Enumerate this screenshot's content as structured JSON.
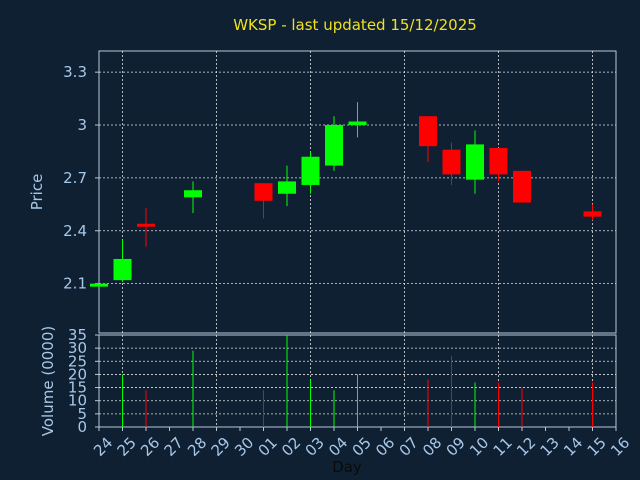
{
  "chart_data": [
    {
      "type": "candlestick",
      "title": "WKSP - last updated 15/12/2025",
      "ylabel": "Price",
      "ylim": [
        1.82,
        3.42
      ],
      "yticks": [
        2.1,
        2.4,
        2.7,
        3,
        3.3
      ],
      "ytick_labels": [
        "2.1",
        "2.4",
        "2.7",
        "3",
        "3.3"
      ],
      "grid": true,
      "categories": [
        "24",
        "25",
        "26",
        "27",
        "28",
        "29",
        "30",
        "01",
        "02",
        "03",
        "04",
        "05",
        "06",
        "07",
        "08",
        "09",
        "10",
        "11",
        "12",
        "13",
        "14",
        "15",
        "16"
      ],
      "colors": {
        "up": "#00ff00",
        "down": "#ff0000"
      },
      "candles": [
        {
          "x": "24",
          "open": 2.1,
          "high": 2.1,
          "low": 2.1,
          "close": 2.1
        },
        {
          "x": "25",
          "open": 2.12,
          "high": 2.35,
          "low": 2.11,
          "close": 2.24
        },
        {
          "x": "26",
          "open": 2.44,
          "high": 2.53,
          "low": 2.31,
          "close": 2.43
        },
        {
          "x": "28",
          "open": 2.59,
          "high": 2.68,
          "low": 2.5,
          "close": 2.63
        },
        {
          "x": "01",
          "open": 2.67,
          "high": 2.67,
          "low": 2.47,
          "close": 2.57
        },
        {
          "x": "02",
          "open": 2.61,
          "high": 2.77,
          "low": 2.54,
          "close": 2.68
        },
        {
          "x": "03",
          "open": 2.66,
          "high": 2.85,
          "low": 2.61,
          "close": 2.82
        },
        {
          "x": "04",
          "open": 2.77,
          "high": 3.05,
          "low": 2.74,
          "close": 3.0
        },
        {
          "x": "05",
          "open": 3.0,
          "high": 3.13,
          "low": 2.93,
          "close": 3.02
        },
        {
          "x": "08",
          "open": 3.05,
          "high": 3.05,
          "low": 2.79,
          "close": 2.88
        },
        {
          "x": "09",
          "open": 2.86,
          "high": 2.9,
          "low": 2.66,
          "close": 2.72
        },
        {
          "x": "10",
          "open": 2.69,
          "high": 2.97,
          "low": 2.61,
          "close": 2.89
        },
        {
          "x": "11",
          "open": 2.87,
          "high": 2.87,
          "low": 2.68,
          "close": 2.72
        },
        {
          "x": "12",
          "open": 2.74,
          "high": 2.74,
          "low": 2.56,
          "close": 2.56
        },
        {
          "x": "15",
          "open": 2.51,
          "high": 2.55,
          "low": 2.46,
          "close": 2.48
        }
      ]
    },
    {
      "type": "bar",
      "ylabel": "Volume (0000)",
      "xlabel": "Day",
      "ylim": [
        0,
        35
      ],
      "yticks": [
        0,
        5,
        10,
        15,
        20,
        25,
        30,
        35
      ],
      "ytick_labels": [
        "0",
        "5",
        "10",
        "15",
        "20",
        "25",
        "30",
        "35"
      ],
      "grid": true,
      "categories": [
        "24",
        "25",
        "26",
        "27",
        "28",
        "29",
        "30",
        "01",
        "02",
        "03",
        "04",
        "05",
        "06",
        "07",
        "08",
        "09",
        "10",
        "11",
        "12",
        "13",
        "14",
        "15",
        "16"
      ],
      "bars": [
        {
          "x": "25",
          "value": 20,
          "direction": "up"
        },
        {
          "x": "26",
          "value": 14,
          "direction": "down"
        },
        {
          "x": "28",
          "value": 29,
          "direction": "up"
        },
        {
          "x": "01",
          "value": 14,
          "direction": "down"
        },
        {
          "x": "02",
          "value": 35,
          "direction": "up"
        },
        {
          "x": "03",
          "value": 18,
          "direction": "up"
        },
        {
          "x": "04",
          "value": 14,
          "direction": "up"
        },
        {
          "x": "05",
          "value": 20,
          "direction": "up"
        },
        {
          "x": "08",
          "value": 18,
          "direction": "down"
        },
        {
          "x": "09",
          "value": 27,
          "direction": "down"
        },
        {
          "x": "10",
          "value": 17,
          "direction": "up"
        },
        {
          "x": "11",
          "value": 17,
          "direction": "down"
        },
        {
          "x": "12",
          "value": 15,
          "direction": "down"
        },
        {
          "x": "15",
          "value": 17,
          "direction": "down"
        }
      ]
    }
  ]
}
